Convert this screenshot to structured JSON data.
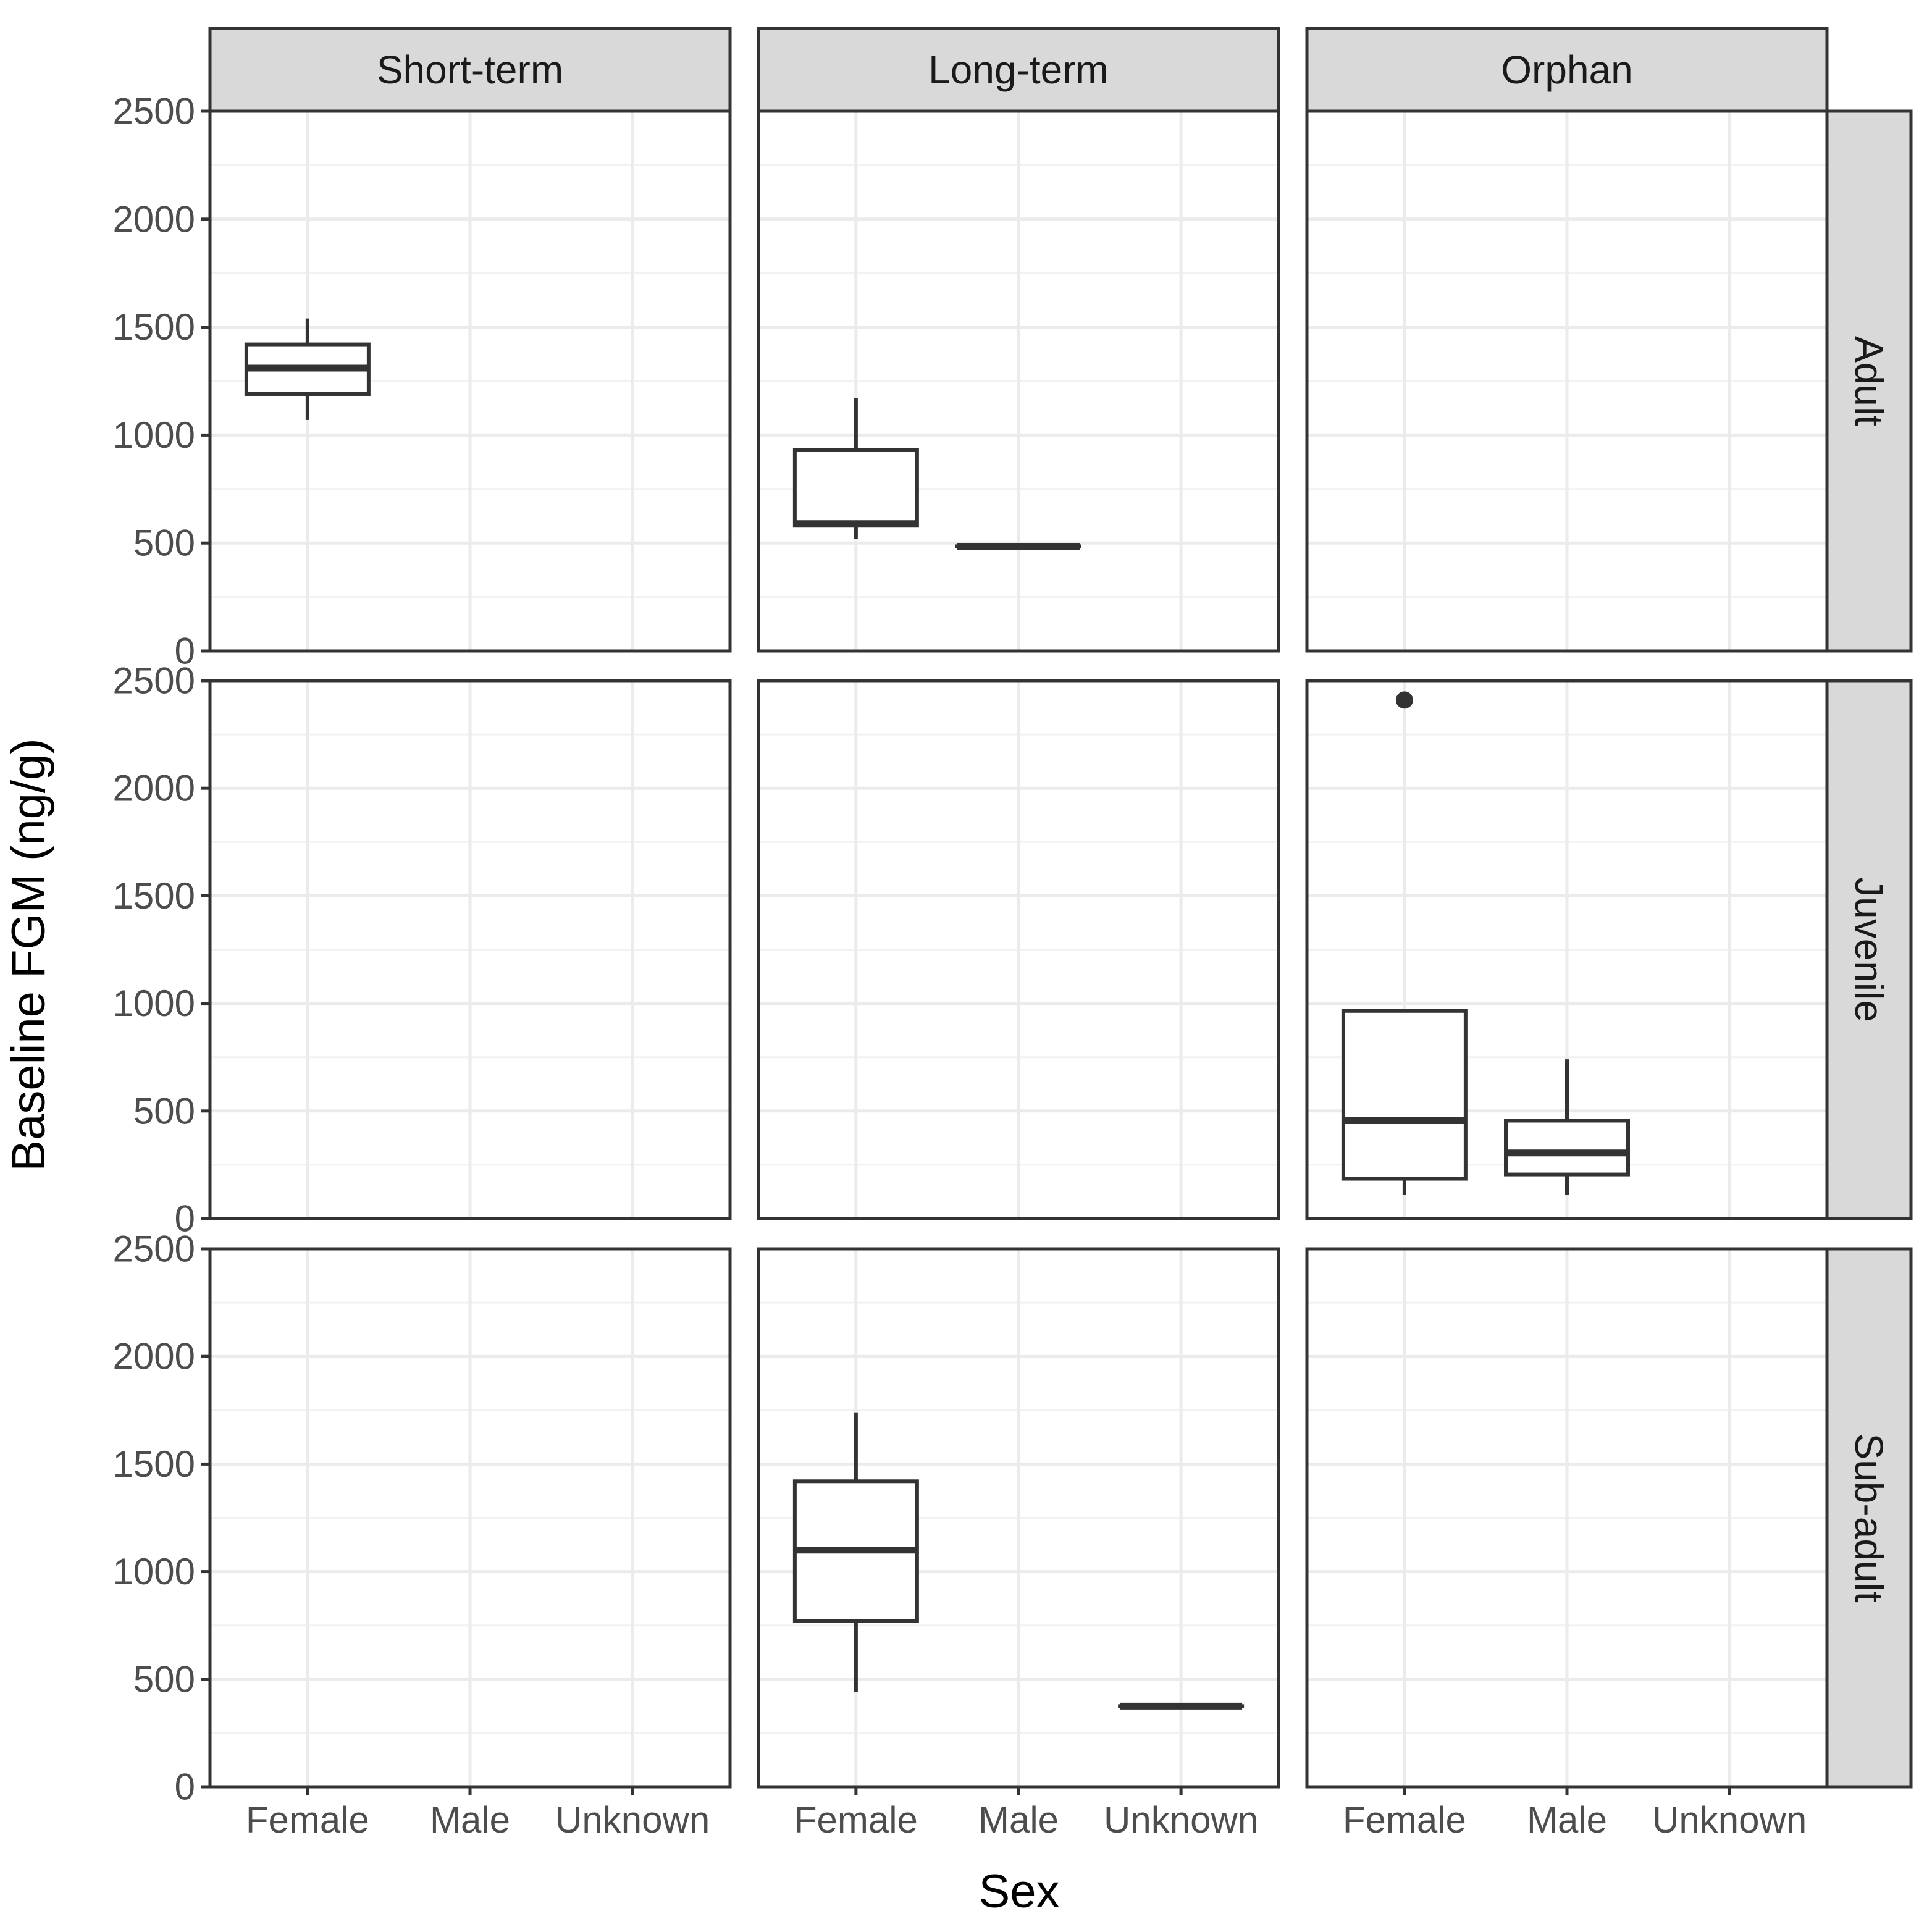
{
  "chart_data": {
    "type": "boxplot",
    "ylabel": "Baseline FGM (ng/g)",
    "xlabel": "Sex",
    "col_facets": [
      "Short-term",
      "Long-term",
      "Orphan"
    ],
    "row_facets": [
      "Adult",
      "Juvenile",
      "Sub-adult"
    ],
    "categories": [
      "Female",
      "Male",
      "Unknown"
    ],
    "ylim": [
      0,
      2500
    ],
    "yticks": [
      0,
      500,
      1000,
      1500,
      2000,
      2500
    ],
    "ytick_labels": [
      "0",
      "500",
      "1000",
      "1500",
      "2000",
      "2500"
    ],
    "grid": true,
    "boxes": [
      {
        "row": "Adult",
        "col": "Short-term",
        "x": "Female",
        "whisker_low": 1070,
        "q1": 1190,
        "median": 1310,
        "q3": 1420,
        "whisker_high": 1540,
        "outliers": []
      },
      {
        "row": "Adult",
        "col": "Long-term",
        "x": "Female",
        "whisker_low": 520,
        "q1": 580,
        "median": 590,
        "q3": 930,
        "whisker_high": 1170,
        "outliers": []
      },
      {
        "row": "Adult",
        "col": "Long-term",
        "x": "Male",
        "whisker_low": 485,
        "q1": 485,
        "median": 485,
        "q3": 485,
        "whisker_high": 485,
        "outliers": []
      },
      {
        "row": "Juvenile",
        "col": "Orphan",
        "x": "Female",
        "whisker_low": 110,
        "q1": 185,
        "median": 455,
        "q3": 965,
        "whisker_high": 965,
        "outliers": [
          2410
        ]
      },
      {
        "row": "Juvenile",
        "col": "Orphan",
        "x": "Male",
        "whisker_low": 110,
        "q1": 205,
        "median": 305,
        "q3": 455,
        "whisker_high": 740,
        "outliers": []
      },
      {
        "row": "Sub-adult",
        "col": "Long-term",
        "x": "Female",
        "whisker_low": 440,
        "q1": 770,
        "median": 1100,
        "q3": 1420,
        "whisker_high": 1740,
        "outliers": []
      },
      {
        "row": "Sub-adult",
        "col": "Long-term",
        "x": "Unknown",
        "whisker_low": 375,
        "q1": 375,
        "median": 375,
        "q3": 375,
        "whisker_high": 375,
        "outliers": []
      }
    ]
  }
}
